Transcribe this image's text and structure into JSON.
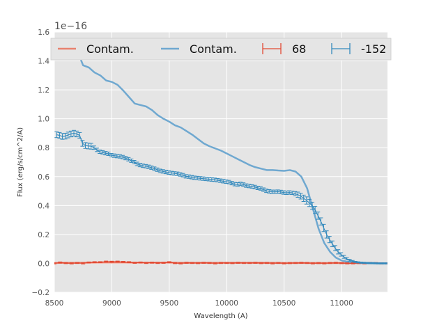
{
  "chart_data": {
    "type": "line",
    "xlabel": "Wavelength (A)",
    "ylabel": "Flux (erg/s/cm^2/A)",
    "y_offset_label": "1e−16",
    "xlim": [
      8500,
      11400
    ],
    "ylim": [
      -0.2,
      1.6
    ],
    "x_ticks": [
      8500,
      9000,
      9500,
      10000,
      10500,
      11000
    ],
    "y_ticks": [
      -0.2,
      0.0,
      0.2,
      0.4,
      0.6,
      0.8,
      1.0,
      1.2,
      1.4,
      1.6
    ],
    "y_tick_labels": [
      "−0.2",
      "0.0",
      "0.2",
      "0.4",
      "0.6",
      "0.8",
      "1.0",
      "1.2",
      "1.4",
      "1.6"
    ],
    "grid": true,
    "background": "#e5e5e5",
    "legend_position": "top",
    "series": [
      {
        "name": "Contam.",
        "style": "line",
        "color": "#e8826f",
        "x": [
          8500,
          8600,
          8700,
          8800,
          8900,
          9000,
          9100,
          9200,
          9300,
          9400,
          9500,
          9600,
          9700,
          9800,
          9900,
          10000,
          10100,
          10200,
          10300,
          10400,
          10500,
          10600,
          10700,
          10800,
          10900,
          11000,
          11100,
          11200,
          11300,
          11400
        ],
        "values": [
          0.003,
          0.004,
          0.004,
          0.005,
          0.006,
          0.006,
          0.006,
          0.005,
          0.005,
          0.005,
          0.005,
          0.004,
          0.004,
          0.004,
          0.004,
          0.004,
          0.004,
          0.004,
          0.004,
          0.004,
          0.003,
          0.003,
          0.003,
          0.003,
          0.002,
          0.002,
          0.002,
          0.001,
          0.001,
          0.001
        ]
      },
      {
        "name": "Contam.",
        "style": "line",
        "color": "#6fa8d0",
        "x": [
          8730,
          8750,
          8800,
          8850,
          8900,
          8950,
          9000,
          9050,
          9100,
          9150,
          9200,
          9250,
          9300,
          9350,
          9400,
          9450,
          9500,
          9550,
          9600,
          9650,
          9700,
          9750,
          9800,
          9850,
          9900,
          9950,
          10000,
          10050,
          10100,
          10150,
          10200,
          10250,
          10300,
          10350,
          10400,
          10450,
          10500,
          10550,
          10600,
          10650,
          10700,
          10750,
          10800,
          10850,
          10900,
          10950,
          11000,
          11050,
          11100,
          11150,
          11200,
          11300,
          11400
        ],
        "values": [
          1.41,
          1.37,
          1.355,
          1.32,
          1.3,
          1.265,
          1.255,
          1.235,
          1.195,
          1.15,
          1.105,
          1.095,
          1.085,
          1.06,
          1.025,
          1.0,
          0.98,
          0.955,
          0.94,
          0.915,
          0.89,
          0.86,
          0.83,
          0.81,
          0.795,
          0.78,
          0.76,
          0.74,
          0.72,
          0.7,
          0.68,
          0.665,
          0.655,
          0.645,
          0.645,
          0.642,
          0.64,
          0.645,
          0.635,
          0.6,
          0.52,
          0.38,
          0.24,
          0.14,
          0.08,
          0.04,
          0.02,
          0.01,
          0.005,
          0.003,
          0.001,
          0.0,
          0.0
        ]
      },
      {
        "name": "68",
        "style": "errorbar",
        "color": "#e24a33",
        "x": [
          8500,
          8550,
          8600,
          8650,
          8700,
          8750,
          8800,
          8850,
          8900,
          8950,
          9000,
          9050,
          9100,
          9150,
          9200,
          9250,
          9300,
          9350,
          9400,
          9450,
          9500,
          9550,
          9600,
          9650,
          9700,
          9750,
          9800,
          9850,
          9900,
          9950,
          10000,
          10050,
          10100,
          10150,
          10200,
          10250,
          10300,
          10350,
          10400,
          10450,
          10500,
          10550,
          10600,
          10650,
          10700,
          10750,
          10800,
          10850,
          10900,
          10950,
          11000,
          11050,
          11100,
          11150,
          11200,
          11250,
          11300,
          11350,
          11400
        ],
        "values": [
          0.0,
          0.006,
          0.002,
          0.0,
          0.003,
          0.0,
          0.006,
          0.008,
          0.008,
          0.012,
          0.011,
          0.012,
          0.01,
          0.008,
          0.004,
          0.006,
          0.003,
          0.005,
          0.003,
          0.004,
          0.008,
          0.002,
          0.0,
          0.004,
          0.003,
          0.002,
          0.004,
          0.003,
          0.0,
          0.003,
          0.003,
          0.002,
          0.004,
          0.003,
          0.003,
          0.004,
          0.002,
          0.003,
          0.0,
          0.003,
          0.0,
          0.002,
          0.003,
          0.004,
          0.003,
          0.0,
          0.002,
          0.0,
          0.003,
          0.004,
          0.002,
          0.0,
          0.0,
          0.002,
          0.0,
          0.003,
          0.002,
          0.0,
          0.0
        ],
        "errors": [
          0.004,
          0.004,
          0.004,
          0.004,
          0.004,
          0.004,
          0.004,
          0.004,
          0.004,
          0.004,
          0.004,
          0.004,
          0.004,
          0.004,
          0.004,
          0.004,
          0.004,
          0.004,
          0.004,
          0.004,
          0.004,
          0.004,
          0.004,
          0.004,
          0.004,
          0.004,
          0.004,
          0.004,
          0.004,
          0.004,
          0.004,
          0.004,
          0.004,
          0.004,
          0.004,
          0.004,
          0.004,
          0.004,
          0.004,
          0.004,
          0.004,
          0.004,
          0.004,
          0.004,
          0.004,
          0.004,
          0.004,
          0.004,
          0.004,
          0.004,
          0.004,
          0.004,
          0.004,
          0.004,
          0.004,
          0.004,
          0.004,
          0.004,
          0.004
        ]
      },
      {
        "name": "-152",
        "style": "errorbar",
        "color": "#348abd",
        "x": [
          8520,
          8545,
          8570,
          8595,
          8620,
          8645,
          8670,
          8695,
          8720,
          8745,
          8770,
          8795,
          8820,
          8845,
          8870,
          8895,
          8920,
          8945,
          8970,
          8995,
          9020,
          9045,
          9070,
          9095,
          9120,
          9145,
          9170,
          9195,
          9220,
          9245,
          9270,
          9295,
          9320,
          9345,
          9370,
          9395,
          9420,
          9445,
          9470,
          9495,
          9520,
          9545,
          9570,
          9595,
          9620,
          9645,
          9670,
          9695,
          9720,
          9745,
          9770,
          9795,
          9820,
          9845,
          9870,
          9895,
          9920,
          9945,
          9970,
          9995,
          10020,
          10045,
          10070,
          10095,
          10120,
          10145,
          10170,
          10195,
          10220,
          10245,
          10270,
          10295,
          10320,
          10345,
          10370,
          10395,
          10420,
          10445,
          10470,
          10495,
          10520,
          10545,
          10570,
          10595,
          10620,
          10645,
          10670,
          10695,
          10720,
          10745,
          10770,
          10795,
          10820,
          10845,
          10870,
          10895,
          10920,
          10945,
          10970,
          10995,
          11020,
          11045,
          11070,
          11095,
          11120,
          11145,
          11170,
          11195,
          11220,
          11245,
          11270,
          11295,
          11320,
          11345,
          11370,
          11395
        ],
        "values": [
          0.89,
          0.885,
          0.878,
          0.88,
          0.888,
          0.895,
          0.9,
          0.895,
          0.885,
          0.83,
          0.815,
          0.812,
          0.81,
          0.8,
          0.785,
          0.772,
          0.768,
          0.762,
          0.758,
          0.748,
          0.745,
          0.742,
          0.74,
          0.735,
          0.728,
          0.72,
          0.71,
          0.7,
          0.688,
          0.68,
          0.675,
          0.672,
          0.668,
          0.662,
          0.655,
          0.648,
          0.64,
          0.636,
          0.632,
          0.628,
          0.625,
          0.622,
          0.62,
          0.615,
          0.61,
          0.602,
          0.6,
          0.596,
          0.592,
          0.59,
          0.588,
          0.586,
          0.584,
          0.582,
          0.58,
          0.578,
          0.575,
          0.572,
          0.568,
          0.565,
          0.562,
          0.555,
          0.548,
          0.546,
          0.55,
          0.545,
          0.538,
          0.535,
          0.532,
          0.528,
          0.522,
          0.518,
          0.51,
          0.502,
          0.498,
          0.495,
          0.495,
          0.496,
          0.494,
          0.49,
          0.488,
          0.49,
          0.488,
          0.482,
          0.475,
          0.465,
          0.45,
          0.435,
          0.418,
          0.398,
          0.37,
          0.33,
          0.29,
          0.245,
          0.2,
          0.165,
          0.135,
          0.105,
          0.08,
          0.062,
          0.045,
          0.032,
          0.022,
          0.015,
          0.01,
          0.007,
          0.005,
          0.004,
          0.003,
          0.002,
          0.002,
          0.001,
          0.0,
          0.0,
          0.0,
          0.0
        ],
        "errors": [
          0.02,
          0.02,
          0.02,
          0.02,
          0.02,
          0.02,
          0.02,
          0.02,
          0.02,
          0.02,
          0.02,
          0.02,
          0.02,
          0.012,
          0.012,
          0.012,
          0.012,
          0.012,
          0.012,
          0.012,
          0.012,
          0.012,
          0.012,
          0.012,
          0.012,
          0.012,
          0.012,
          0.012,
          0.012,
          0.012,
          0.012,
          0.012,
          0.012,
          0.012,
          0.012,
          0.012,
          0.012,
          0.012,
          0.012,
          0.012,
          0.012,
          0.012,
          0.012,
          0.012,
          0.012,
          0.012,
          0.012,
          0.012,
          0.012,
          0.012,
          0.012,
          0.012,
          0.012,
          0.012,
          0.012,
          0.012,
          0.012,
          0.012,
          0.012,
          0.012,
          0.012,
          0.012,
          0.012,
          0.012,
          0.012,
          0.012,
          0.012,
          0.012,
          0.012,
          0.012,
          0.012,
          0.012,
          0.012,
          0.012,
          0.012,
          0.012,
          0.012,
          0.012,
          0.012,
          0.012,
          0.012,
          0.012,
          0.012,
          0.015,
          0.018,
          0.02,
          0.022,
          0.025,
          0.025,
          0.025,
          0.025,
          0.025,
          0.025,
          0.025,
          0.025,
          0.022,
          0.02,
          0.018,
          0.015,
          0.012,
          0.01,
          0.008,
          0.006,
          0.005,
          0.004,
          0.004,
          0.004,
          0.004,
          0.004,
          0.004,
          0.004,
          0.004,
          0.004,
          0.004,
          0.004,
          0.004
        ]
      }
    ]
  }
}
